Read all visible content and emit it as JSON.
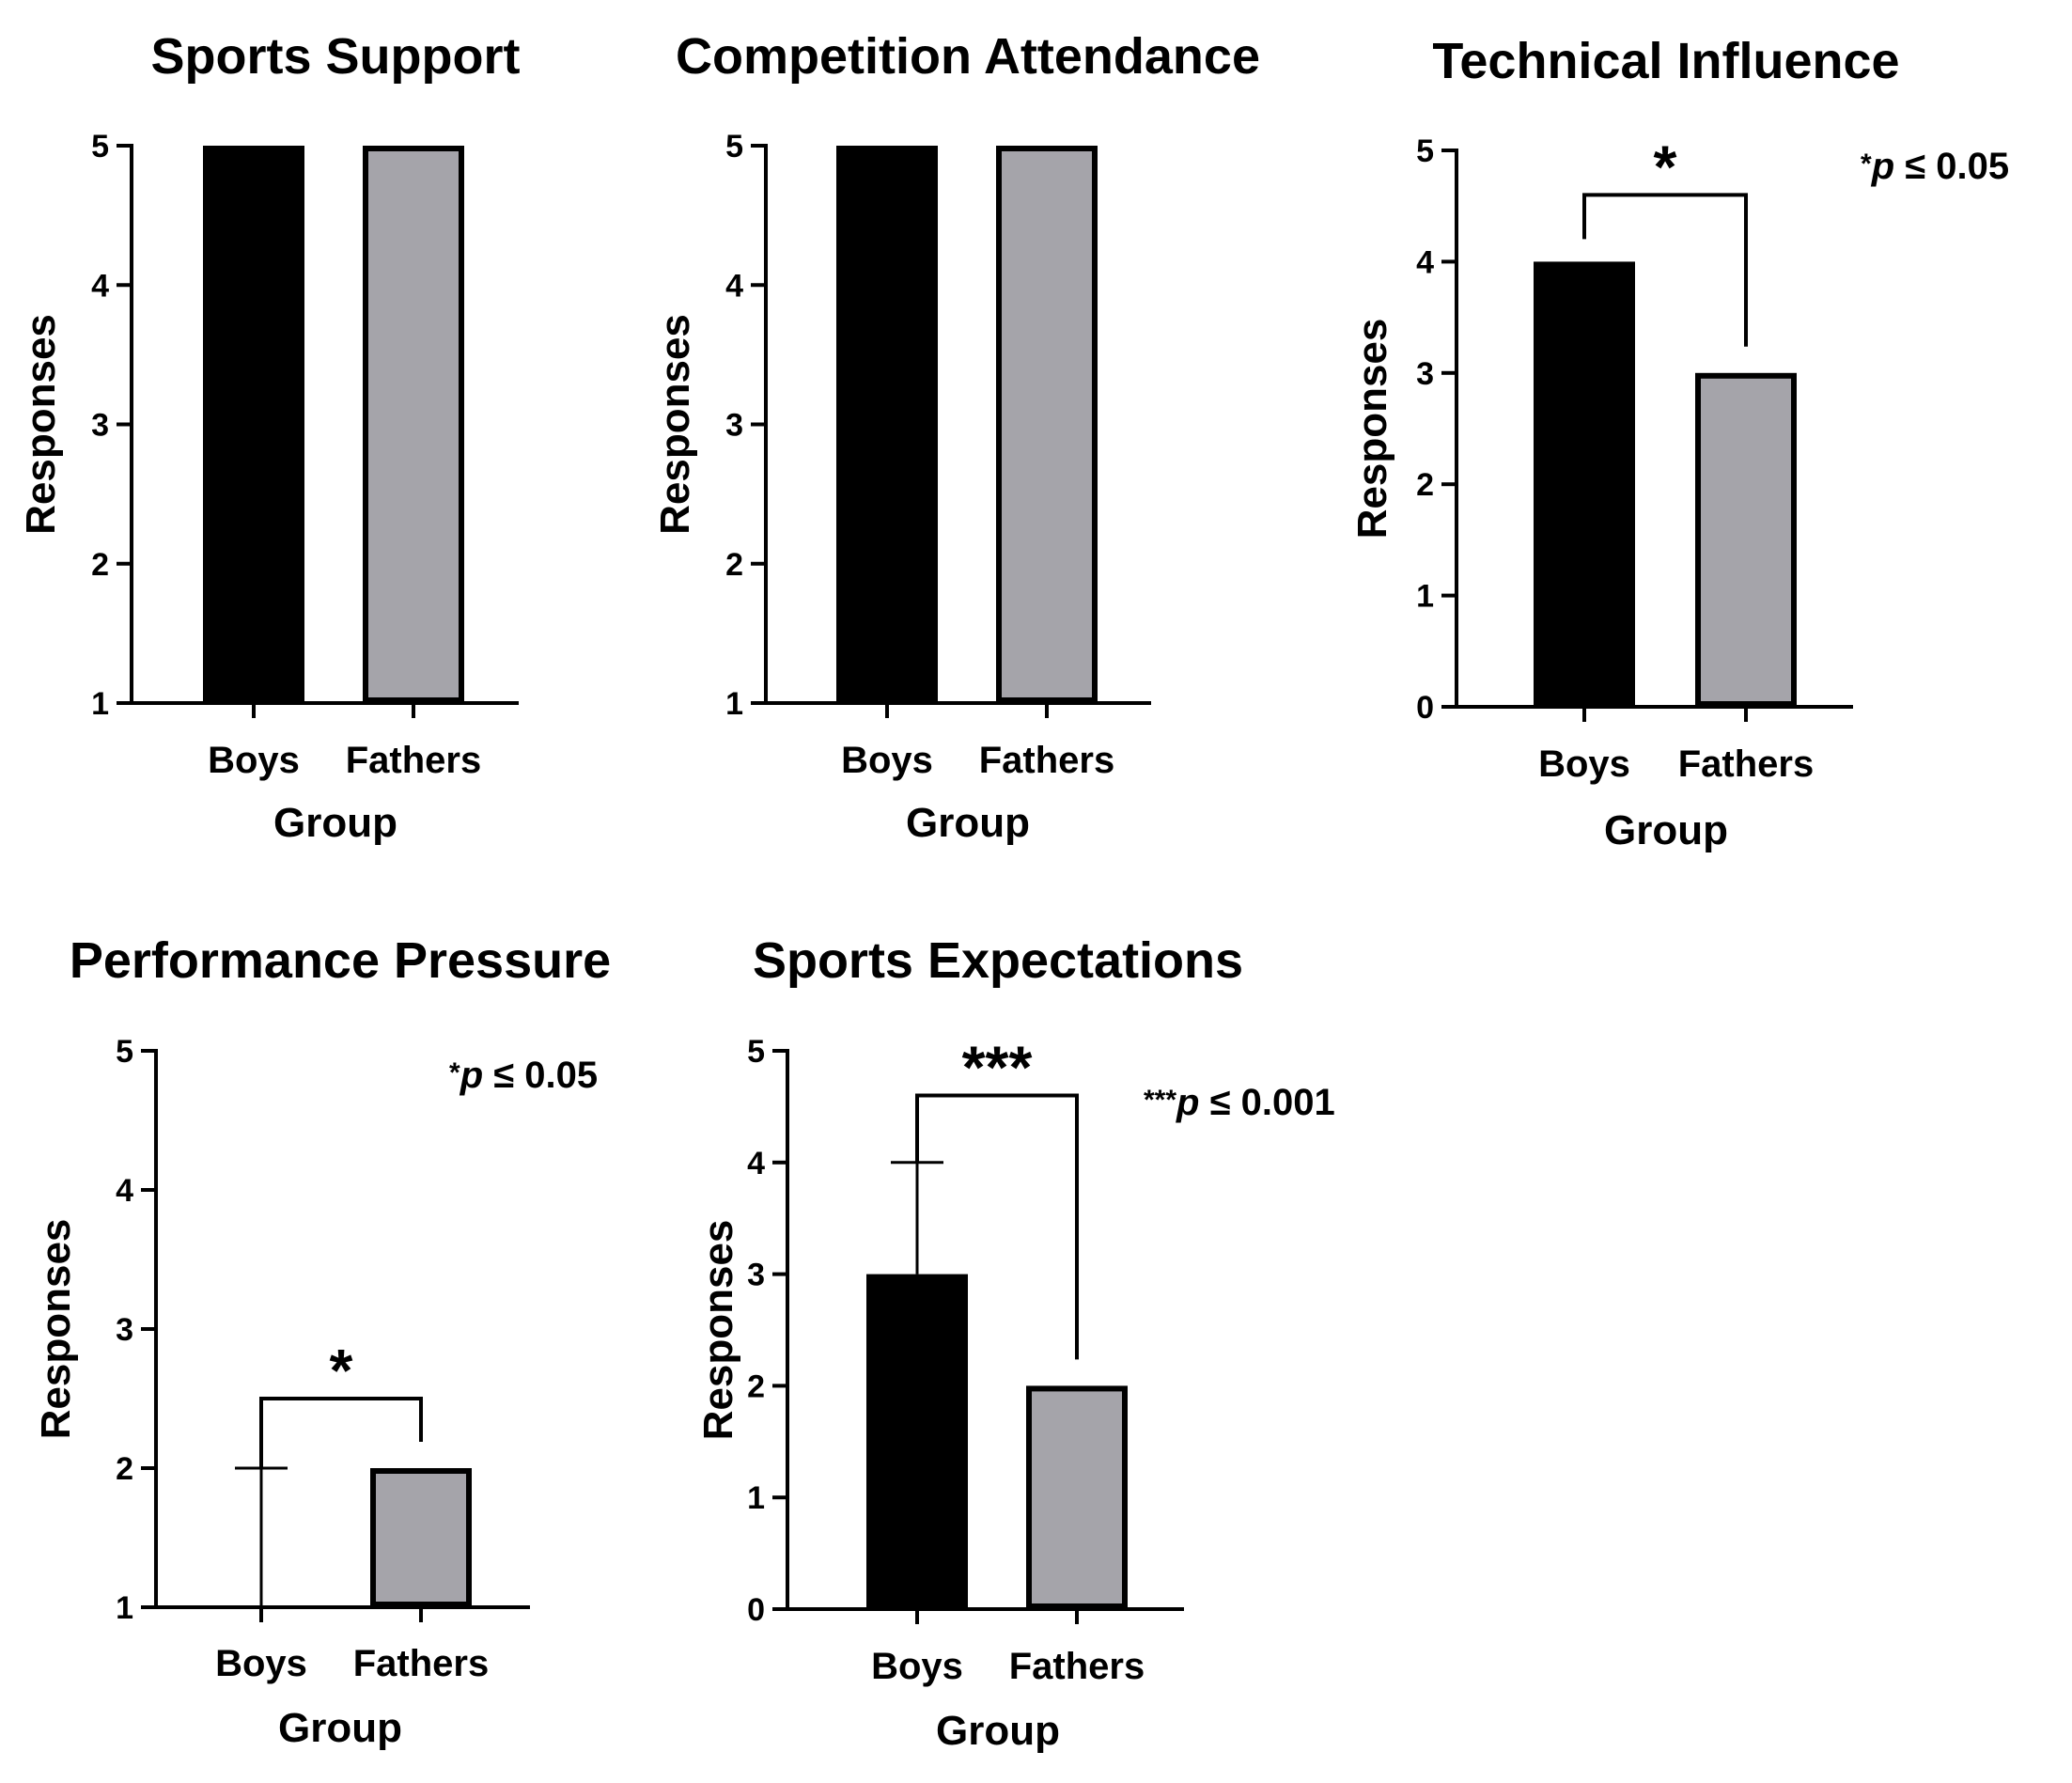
{
  "chart_data": [
    {
      "type": "bar",
      "title": "Sports Support",
      "xlabel": "Group",
      "ylabel": "Responses",
      "categories": [
        "Boys",
        "Fathers"
      ],
      "values": [
        5,
        5
      ],
      "colors": [
        "#000000",
        "#a5a4aa"
      ],
      "ylim": [
        1,
        5
      ],
      "yticks": [
        "1",
        "2",
        "3",
        "4",
        "5"
      ]
    },
    {
      "type": "bar",
      "title": "Competition Attendance",
      "xlabel": "Group",
      "ylabel": "Responses",
      "categories": [
        "Boys",
        "Fathers"
      ],
      "values": [
        5,
        5
      ],
      "colors": [
        "#000000",
        "#a5a4aa"
      ],
      "ylim": [
        1,
        5
      ],
      "yticks": [
        "1",
        "2",
        "3",
        "4",
        "5"
      ]
    },
    {
      "type": "bar",
      "title": "Technical Influence",
      "xlabel": "Group",
      "ylabel": "Responses",
      "categories": [
        "Boys",
        "Fathers"
      ],
      "values": [
        4,
        3
      ],
      "colors": [
        "#000000",
        "#a5a4aa"
      ],
      "ylim": [
        0,
        5
      ],
      "yticks": [
        "0",
        "1",
        "2",
        "3",
        "4",
        "5"
      ],
      "significance": {
        "stars": "*",
        "note_prefix": "*",
        "note_p": "p",
        "note_rest": " ≤ 0.05",
        "bracket_level": 4.6
      }
    },
    {
      "type": "bar",
      "title": "Performance Pressure",
      "xlabel": "Group",
      "ylabel": "Responses",
      "categories": [
        "Boys",
        "Fathers"
      ],
      "values": [
        1,
        2
      ],
      "error_upper": [
        2,
        null
      ],
      "colors": [
        "#000000",
        "#a5a4aa"
      ],
      "ylim": [
        1,
        5
      ],
      "yticks": [
        "1",
        "2",
        "3",
        "4",
        "5"
      ],
      "significance": {
        "stars": "*",
        "note_prefix": "*",
        "note_p": "p",
        "note_rest": " ≤ 0.05",
        "bracket_level": 2.5
      }
    },
    {
      "type": "bar",
      "title": "Sports Expectations",
      "xlabel": "Group",
      "ylabel": "Responses",
      "categories": [
        "Boys",
        "Fathers"
      ],
      "values": [
        3,
        2
      ],
      "error_upper": [
        4,
        null
      ],
      "colors": [
        "#000000",
        "#a5a4aa"
      ],
      "ylim": [
        0,
        5
      ],
      "yticks": [
        "0",
        "1",
        "2",
        "3",
        "4",
        "5"
      ],
      "significance": {
        "stars": "***",
        "note_prefix": "***",
        "note_p": "p",
        "note_rest": " ≤ 0.001",
        "bracket_level": 4.6
      }
    }
  ]
}
